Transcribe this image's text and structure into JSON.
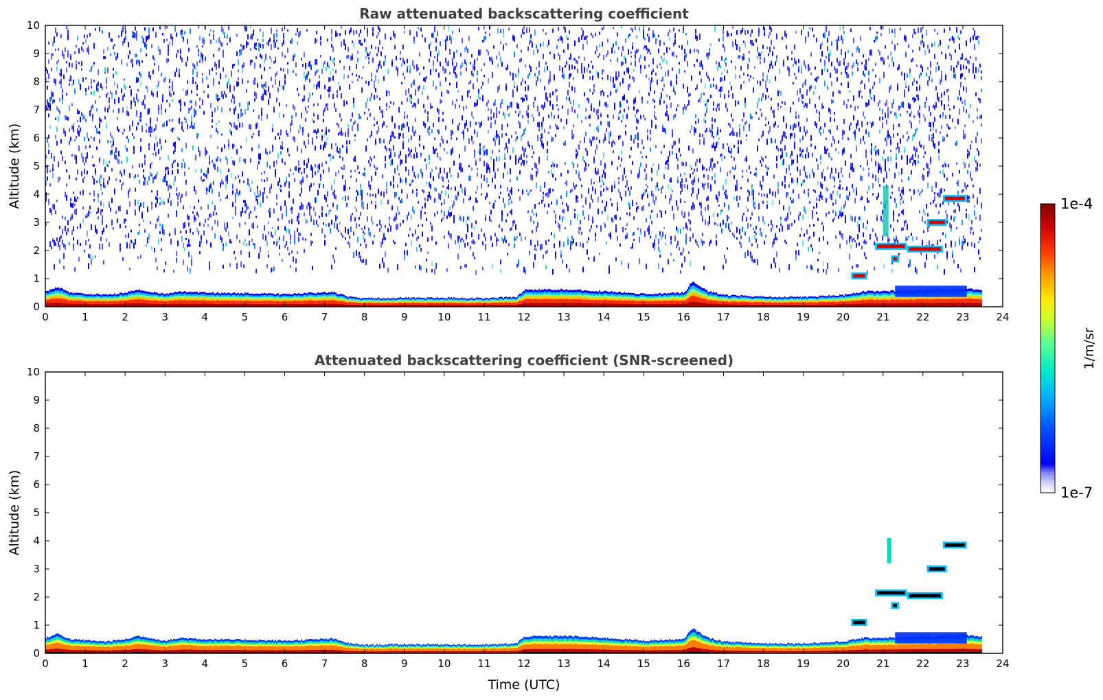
{
  "chart_data": [
    {
      "type": "heatmap",
      "title": "Raw attenuated backscattering coefficient",
      "xlabel": "",
      "ylabel": "Altitude (km)",
      "xlim": [
        0,
        24
      ],
      "ylim": [
        0,
        10
      ],
      "xticks": [
        "0",
        "1",
        "2",
        "3",
        "4",
        "5",
        "6",
        "7",
        "8",
        "9",
        "10",
        "11",
        "12",
        "13",
        "14",
        "15",
        "16",
        "17",
        "18",
        "19",
        "20",
        "21",
        "22",
        "23",
        "24"
      ],
      "yticks": [
        "0",
        "1",
        "2",
        "3",
        "4",
        "5",
        "6",
        "7",
        "8",
        "9",
        "10"
      ],
      "data_end_time": 23.5,
      "boundary_layer": [
        [
          0,
          0.55
        ],
        [
          0.3,
          0.7
        ],
        [
          0.6,
          0.5
        ],
        [
          1.5,
          0.42
        ],
        [
          2.0,
          0.5
        ],
        [
          2.3,
          0.62
        ],
        [
          3.0,
          0.45
        ],
        [
          3.4,
          0.55
        ],
        [
          4.0,
          0.5
        ],
        [
          5.0,
          0.48
        ],
        [
          6.0,
          0.45
        ],
        [
          6.8,
          0.5
        ],
        [
          7.2,
          0.52
        ],
        [
          7.6,
          0.35
        ],
        [
          8.0,
          0.3
        ],
        [
          9.0,
          0.32
        ],
        [
          10.0,
          0.32
        ],
        [
          11.0,
          0.3
        ],
        [
          11.8,
          0.35
        ],
        [
          12.0,
          0.6
        ],
        [
          13.0,
          0.62
        ],
        [
          14.0,
          0.55
        ],
        [
          15.0,
          0.45
        ],
        [
          16.0,
          0.5
        ],
        [
          16.2,
          0.9
        ],
        [
          16.6,
          0.55
        ],
        [
          17.0,
          0.42
        ],
        [
          18.0,
          0.35
        ],
        [
          19.0,
          0.35
        ],
        [
          20.0,
          0.42
        ],
        [
          20.5,
          0.55
        ],
        [
          21.0,
          0.55
        ],
        [
          22.0,
          0.6
        ],
        [
          23.0,
          0.65
        ],
        [
          23.5,
          0.6
        ]
      ],
      "aerosol_layers": [
        {
          "t": [
            20.2,
            20.6
          ],
          "z": 1.1
        },
        {
          "t": [
            20.8,
            21.6
          ],
          "z": 2.15
        },
        {
          "t": [
            21.6,
            22.5
          ],
          "z": 2.05
        },
        {
          "t": [
            21.2,
            21.4
          ],
          "z": 1.7
        },
        {
          "t": [
            22.1,
            22.6
          ],
          "z": 3.0
        },
        {
          "t": [
            22.5,
            23.1
          ],
          "z": 3.85
        }
      ]
    },
    {
      "type": "heatmap",
      "title": "Attenuated backscattering coefficient (SNR-screened)",
      "xlabel": "Time (UTC)",
      "ylabel": "Altitude (km)",
      "xlim": [
        0,
        24
      ],
      "ylim": [
        0,
        10
      ],
      "xticks": [
        "0",
        "1",
        "2",
        "3",
        "4",
        "5",
        "6",
        "7",
        "8",
        "9",
        "10",
        "11",
        "12",
        "13",
        "14",
        "15",
        "16",
        "17",
        "18",
        "19",
        "20",
        "21",
        "22",
        "23",
        "24"
      ],
      "yticks": [
        "0",
        "1",
        "2",
        "3",
        "4",
        "5",
        "6",
        "7",
        "8",
        "9",
        "10"
      ],
      "data_end_time": 23.5
    }
  ],
  "colorbar": {
    "max_label": "1e-4",
    "min_label": "1e-7",
    "label": "1/m/sr",
    "colors": [
      "#ffffff",
      "#e6e6ff",
      "#b3b3ff",
      "#0000ff",
      "#0060ff",
      "#00c0ff",
      "#00e0b0",
      "#80ff80",
      "#e0ff30",
      "#ffd000",
      "#ff8000",
      "#ff2000",
      "#c00000",
      "#800000"
    ]
  }
}
